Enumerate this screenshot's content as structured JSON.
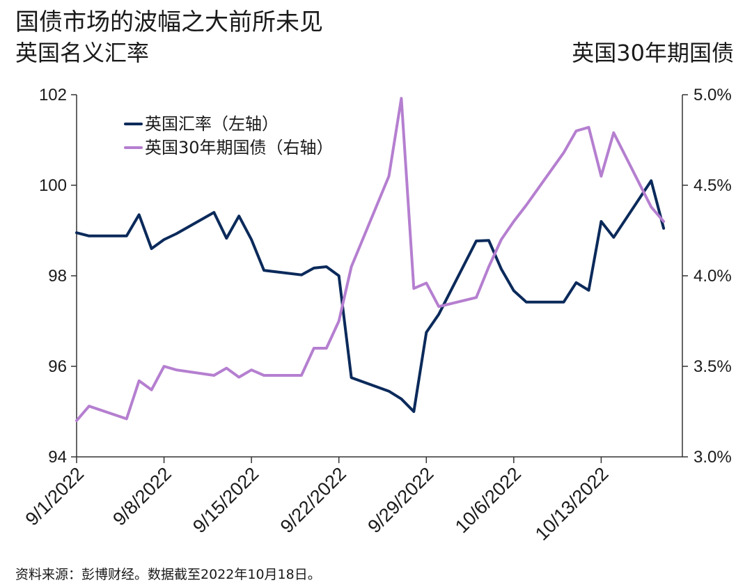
{
  "header": {
    "title": "国债市场的波幅之大前所未见",
    "left_axis_title": "英国名义汇率",
    "right_axis_title": "英国30年期国债"
  },
  "footer": {
    "source": "资料来源：彭博财经。数据截至2022年10月18日。"
  },
  "colors": {
    "series_fx": "#0b2a5b",
    "series_gilt": "#b57fd0",
    "axis": "#333333"
  },
  "chart_data": {
    "type": "line",
    "x_tick_labels": [
      "9/1/2022",
      "9/8/2022",
      "9/15/2022",
      "9/22/2022",
      "9/29/2022",
      "10/6/2022",
      "10/13/2022"
    ],
    "y_left": {
      "min": 94,
      "max": 102,
      "ticks": [
        94,
        96,
        98,
        100,
        102
      ],
      "tick_labels": [
        "94",
        "96",
        "98",
        "100",
        "102"
      ]
    },
    "y_right": {
      "min": 3.0,
      "max": 5.0,
      "ticks": [
        3.0,
        3.5,
        4.0,
        4.5,
        5.0
      ],
      "tick_labels": [
        "3.0%",
        "3.5%",
        "4.0%",
        "4.5%",
        "5.0%"
      ]
    },
    "grid": false,
    "legend_position": "top-left",
    "series": [
      {
        "name": "英国汇率（左轴）",
        "axis": "left",
        "points": [
          [
            "2022-09-01",
            98.95
          ],
          [
            "2022-09-02",
            98.88
          ],
          [
            "2022-09-05",
            98.88
          ],
          [
            "2022-09-06",
            99.35
          ],
          [
            "2022-09-07",
            98.6
          ],
          [
            "2022-09-08",
            98.8
          ],
          [
            "2022-09-09",
            98.93
          ],
          [
            "2022-09-12",
            99.4
          ],
          [
            "2022-09-13",
            98.83
          ],
          [
            "2022-09-14",
            99.32
          ],
          [
            "2022-09-15",
            98.8
          ],
          [
            "2022-09-16",
            98.12
          ],
          [
            "2022-09-19",
            98.02
          ],
          [
            "2022-09-20",
            98.17
          ],
          [
            "2022-09-21",
            98.2
          ],
          [
            "2022-09-22",
            98.0
          ],
          [
            "2022-09-23",
            95.75
          ],
          [
            "2022-09-26",
            95.45
          ],
          [
            "2022-09-27",
            95.28
          ],
          [
            "2022-09-28",
            95.0
          ],
          [
            "2022-09-29",
            96.75
          ],
          [
            "2022-09-30",
            97.15
          ],
          [
            "2022-10-03",
            98.77
          ],
          [
            "2022-10-04",
            98.78
          ],
          [
            "2022-10-05",
            98.15
          ],
          [
            "2022-10-06",
            97.67
          ],
          [
            "2022-10-07",
            97.42
          ],
          [
            "2022-10-10",
            97.42
          ],
          [
            "2022-10-11",
            97.85
          ],
          [
            "2022-10-12",
            97.68
          ],
          [
            "2022-10-13",
            99.2
          ],
          [
            "2022-10-14",
            98.85
          ],
          [
            "2022-10-17",
            100.1
          ],
          [
            "2022-10-18",
            99.05
          ]
        ]
      },
      {
        "name": "英国30年期国债（右轴）",
        "axis": "right",
        "points": [
          [
            "2022-09-01",
            3.2
          ],
          [
            "2022-09-02",
            3.28
          ],
          [
            "2022-09-05",
            3.21
          ],
          [
            "2022-09-06",
            3.42
          ],
          [
            "2022-09-07",
            3.37
          ],
          [
            "2022-09-08",
            3.5
          ],
          [
            "2022-09-09",
            3.48
          ],
          [
            "2022-09-12",
            3.45
          ],
          [
            "2022-09-13",
            3.49
          ],
          [
            "2022-09-14",
            3.44
          ],
          [
            "2022-09-15",
            3.48
          ],
          [
            "2022-09-16",
            3.45
          ],
          [
            "2022-09-19",
            3.45
          ],
          [
            "2022-09-20",
            3.6
          ],
          [
            "2022-09-21",
            3.6
          ],
          [
            "2022-09-22",
            3.75
          ],
          [
            "2022-09-23",
            4.05
          ],
          [
            "2022-09-26",
            4.55
          ],
          [
            "2022-09-27",
            4.98
          ],
          [
            "2022-09-28",
            3.93
          ],
          [
            "2022-09-29",
            3.96
          ],
          [
            "2022-09-30",
            3.83
          ],
          [
            "2022-10-03",
            3.88
          ],
          [
            "2022-10-04",
            4.05
          ],
          [
            "2022-10-05",
            4.2
          ],
          [
            "2022-10-06",
            4.3
          ],
          [
            "2022-10-07",
            4.39
          ],
          [
            "2022-10-10",
            4.68
          ],
          [
            "2022-10-11",
            4.8
          ],
          [
            "2022-10-12",
            4.82
          ],
          [
            "2022-10-13",
            4.55
          ],
          [
            "2022-10-14",
            4.79
          ],
          [
            "2022-10-17",
            4.38
          ],
          [
            "2022-10-18",
            4.3
          ]
        ]
      }
    ]
  }
}
